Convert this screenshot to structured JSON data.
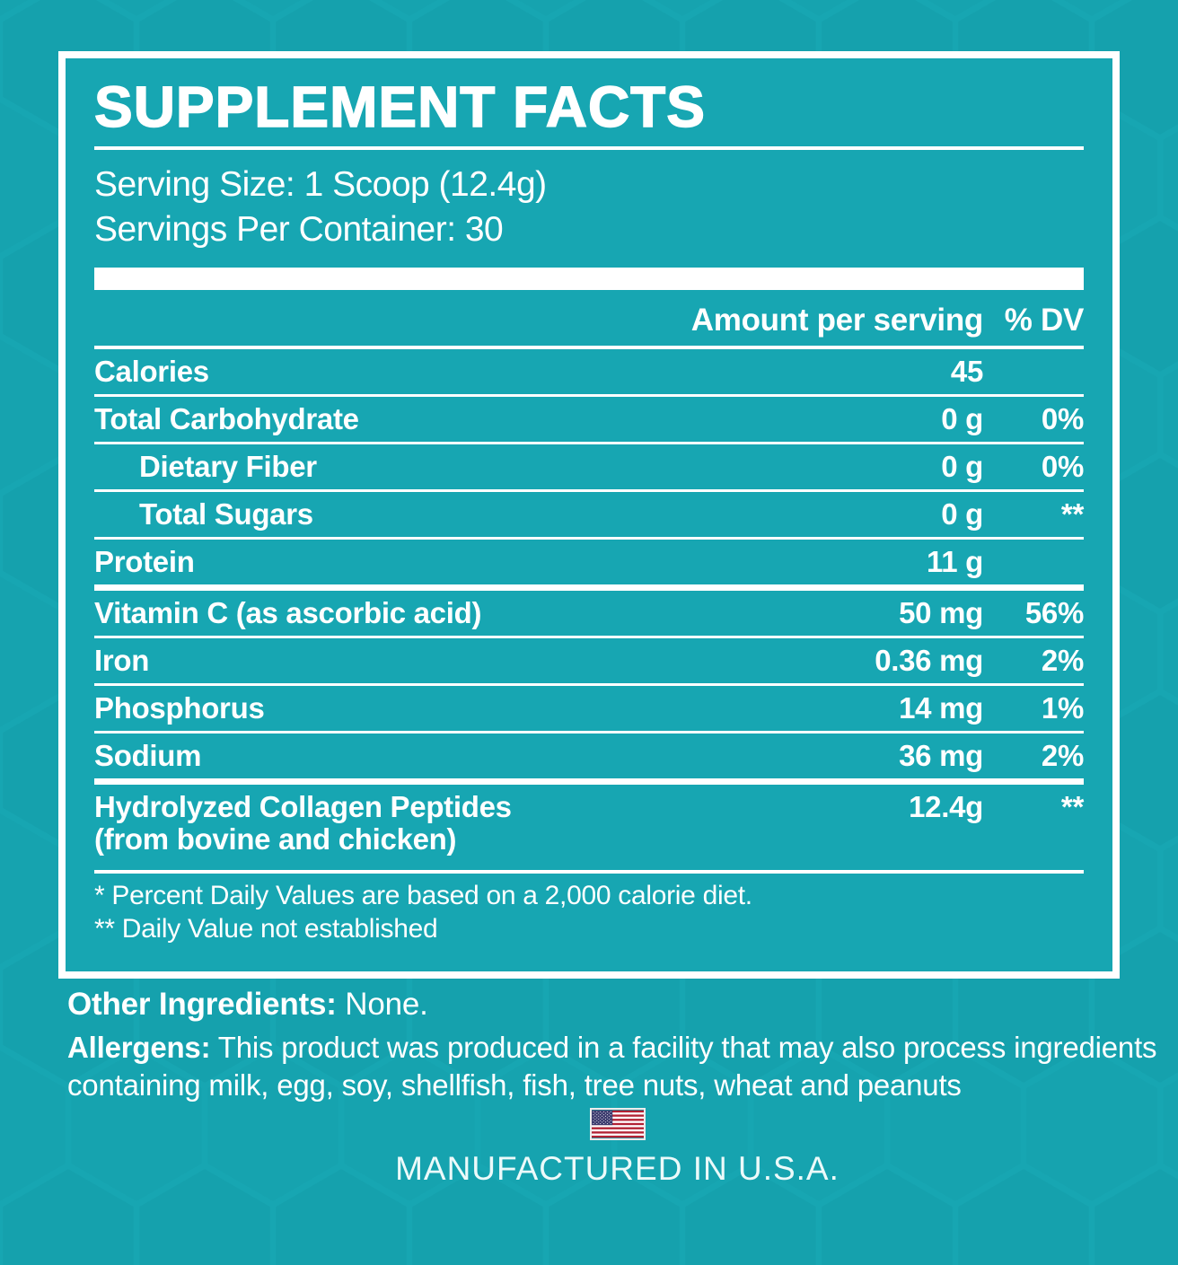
{
  "panel": {
    "title": "SUPPLEMENT FACTS",
    "serving_size": "Serving Size: 1 Scoop (12.4g)",
    "servings_per_container": "Servings Per Container: 30",
    "header": {
      "amount": "Amount per serving",
      "dv": "% DV"
    },
    "rows": [
      {
        "name": "Calories",
        "amount": "45",
        "dv": "",
        "indent": false
      },
      {
        "name": "Total Carbohydrate",
        "amount": "0 g",
        "dv": "0%",
        "indent": false
      },
      {
        "name": "Dietary Fiber",
        "amount": "0 g",
        "dv": "0%",
        "indent": true
      },
      {
        "name": "Total Sugars",
        "amount": "0 g",
        "dv": "**",
        "indent": true
      },
      {
        "name": "Protein",
        "amount": "11 g",
        "dv": "",
        "indent": false
      },
      {
        "name": "Vitamin C (as ascorbic acid)",
        "amount": "50 mg",
        "dv": "56%",
        "indent": false
      },
      {
        "name": "Iron",
        "amount": "0.36 mg",
        "dv": "2%",
        "indent": false
      },
      {
        "name": "Phosphorus",
        "amount": "14 mg",
        "dv": "1%",
        "indent": false
      },
      {
        "name": "Sodium",
        "amount": "36 mg",
        "dv": "2%",
        "indent": false
      },
      {
        "name": "Hydrolyzed Collagen Peptides",
        "subname": "(from bovine and chicken)",
        "amount": "12.4g",
        "dv": "**",
        "indent": false
      }
    ],
    "footnotes": [
      "* Percent Daily Values are based on a 2,000 calorie diet.",
      "** Daily Value not established"
    ]
  },
  "below": {
    "other_ingredients_label": "Other Ingredients:",
    "other_ingredients_value": "None.",
    "allergens_label": "Allergens:",
    "allergens_text": "This product was produced in a facility that may also process ingredients containing milk, egg, soy, shellfish, fish, tree nuts, wheat and peanuts",
    "manufactured": "MANUFACTURED IN U.S.A."
  },
  "icons": {
    "flag": "us-flag-icon"
  },
  "colors": {
    "background_teal": "#17a6b2",
    "pattern_teal_dark": "#026873",
    "text_white": "#ffffff",
    "flag_red": "#b22234",
    "flag_blue": "#3c3b6e"
  }
}
